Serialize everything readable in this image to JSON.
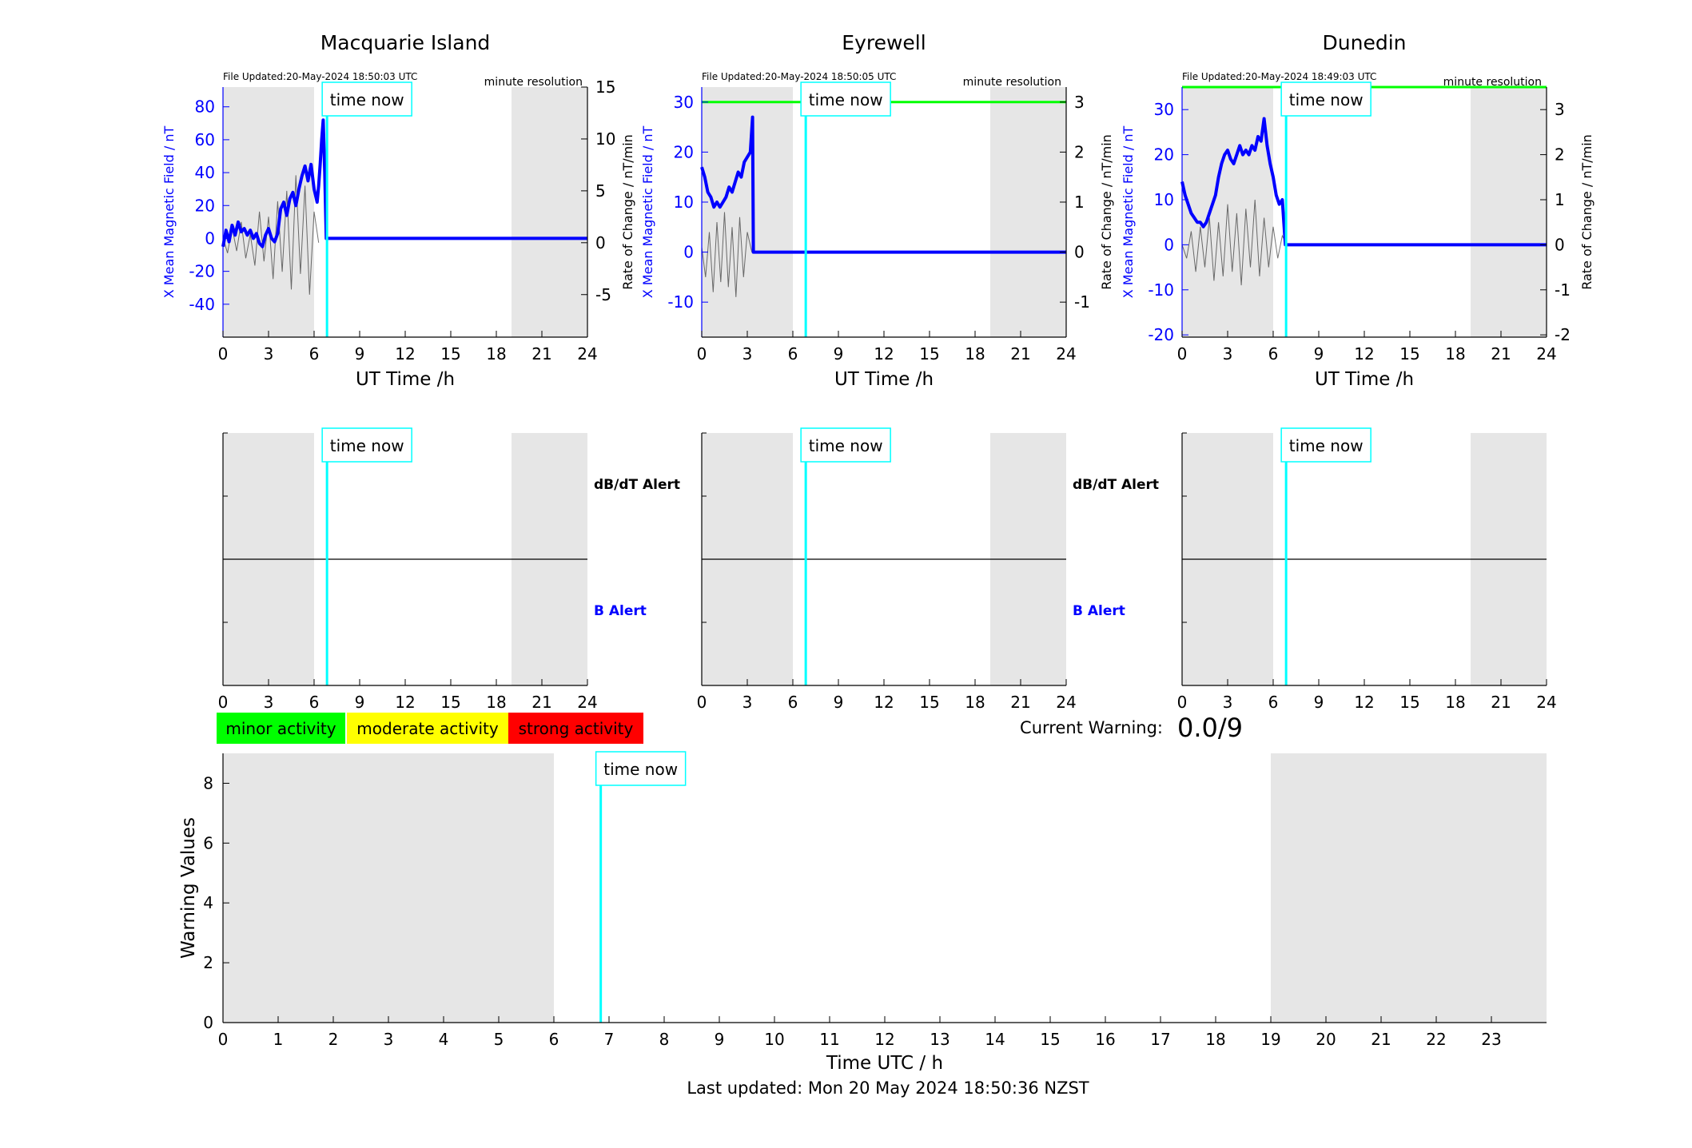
{
  "footer": {
    "last_updated": "Last updated: Mon 20 May 2024 18:50:36 NZST"
  },
  "colors": {
    "x_line": "#0000ff",
    "rate_line": "#000000",
    "threshold_line": "#00ff00",
    "time_now": "#00ffff",
    "night_shade": "#e6e6e6",
    "minor": "#00ff00",
    "moderate": "#ffff00",
    "strong": "#ff0000",
    "b_alert_text": "#0000ff"
  },
  "legend": {
    "minor": "minor activity",
    "moderate": "moderate activity",
    "strong": "strong activity"
  },
  "current_warning": {
    "label": "Current Warning:",
    "value": "0.0/9"
  },
  "chart_data": [
    {
      "type": "line",
      "title": "Macquarie Island",
      "file_updated": "File Updated:20-May-2024 18:50:03 UTC",
      "resolution": "minute resolution",
      "time_now_label": "time now",
      "xlabel": "UT Time /h",
      "ylabel": "X Mean Magnetic Field / nT",
      "ylabel_right": "Rate of Change / nT/min",
      "xlim": [
        0,
        24
      ],
      "xticks": [
        0,
        3,
        6,
        9,
        12,
        15,
        18,
        21,
        24
      ],
      "ylim": [
        -60,
        92
      ],
      "yticks": [
        -40,
        -20,
        0,
        20,
        40,
        60,
        80
      ],
      "ylim_right": [
        -9.1,
        15
      ],
      "yticks_right": [
        -5,
        0,
        5,
        10,
        15
      ],
      "night_shading": [
        [
          0,
          6
        ],
        [
          19,
          24
        ]
      ],
      "time_now": 6.85,
      "series": [
        {
          "name": "X Mean Magnetic Field",
          "x": [
            0,
            0.2,
            0.4,
            0.6,
            0.8,
            1.0,
            1.2,
            1.4,
            1.6,
            1.8,
            2.0,
            2.2,
            2.4,
            2.6,
            2.8,
            3.0,
            3.2,
            3.4,
            3.6,
            3.8,
            4.0,
            4.2,
            4.4,
            4.6,
            4.8,
            5.0,
            5.2,
            5.4,
            5.6,
            5.8,
            6.0,
            6.2,
            6.3,
            6.4,
            6.5,
            6.6,
            6.7,
            6.8,
            7.0,
            24
          ],
          "y": [
            -5,
            5,
            -2,
            8,
            2,
            10,
            4,
            6,
            2,
            5,
            0,
            3,
            -3,
            -5,
            2,
            6,
            0,
            -2,
            3,
            18,
            22,
            14,
            24,
            28,
            20,
            30,
            38,
            44,
            35,
            45,
            30,
            22,
            32,
            45,
            60,
            72,
            40,
            0,
            0,
            0
          ]
        },
        {
          "name": "Rate of Change",
          "x": [
            0,
            0.3,
            0.6,
            0.9,
            1.2,
            1.5,
            1.8,
            2.1,
            2.4,
            2.7,
            3.0,
            3.3,
            3.6,
            3.9,
            4.2,
            4.5,
            4.8,
            5.1,
            5.4,
            5.7,
            6.0,
            6.3
          ],
          "y": [
            0.5,
            -1.0,
            1.5,
            -0.8,
            2.0,
            -1.5,
            0.8,
            -2.2,
            3.0,
            -1.8,
            2.5,
            -3.5,
            4.0,
            -2.8,
            5.0,
            -4.5,
            6.5,
            -3.0,
            5.5,
            -5.0,
            3.0,
            0
          ]
        }
      ],
      "threshold": null
    },
    {
      "type": "line",
      "title": "Eyrewell",
      "file_updated": "File Updated:20-May-2024 18:50:05 UTC",
      "resolution": "minute resolution",
      "time_now_label": "time now",
      "xlabel": "UT Time /h",
      "ylabel": "X Mean Magnetic Field / nT",
      "ylabel_right": "Rate of Change / nT/min",
      "xlim": [
        0,
        24
      ],
      "xticks": [
        0,
        3,
        6,
        9,
        12,
        15,
        18,
        21,
        24
      ],
      "ylim": [
        -17,
        33
      ],
      "yticks": [
        -10,
        0,
        10,
        20,
        30
      ],
      "ylim_right": [
        -1.7,
        3.3
      ],
      "yticks_right": [
        -1,
        0,
        1,
        2,
        3
      ],
      "night_shading": [
        [
          0,
          6
        ],
        [
          19,
          24
        ]
      ],
      "time_now": 6.85,
      "series": [
        {
          "name": "X Mean Magnetic Field",
          "x": [
            0,
            0.2,
            0.4,
            0.6,
            0.8,
            1.0,
            1.2,
            1.4,
            1.6,
            1.8,
            2.0,
            2.2,
            2.4,
            2.6,
            2.8,
            3.0,
            3.2,
            3.35,
            3.4,
            3.5,
            24
          ],
          "y": [
            17,
            15,
            12,
            11,
            9,
            10,
            9,
            10,
            11,
            13,
            12,
            14,
            16,
            15,
            18,
            19,
            20,
            27,
            0,
            0,
            0
          ]
        },
        {
          "name": "Rate of Change",
          "x": [
            0,
            0.25,
            0.5,
            0.75,
            1.0,
            1.25,
            1.5,
            1.75,
            2.0,
            2.25,
            2.5,
            2.75,
            3.0,
            3.3
          ],
          "y": [
            0.1,
            -0.5,
            0.4,
            -0.8,
            0.6,
            -0.6,
            0.8,
            -0.7,
            0.5,
            -0.9,
            0.7,
            -0.5,
            0.4,
            0
          ]
        }
      ],
      "threshold": 30
    },
    {
      "type": "line",
      "title": "Dunedin",
      "file_updated": "File Updated:20-May-2024 18:49:03 UTC",
      "resolution": "minute resolution",
      "time_now_label": "time now",
      "xlabel": "UT Time /h",
      "ylabel": "X Mean Magnetic Field / nT",
      "ylabel_right": "Rate of Change / nT/min",
      "xlim": [
        0,
        24
      ],
      "xticks": [
        0,
        3,
        6,
        9,
        12,
        15,
        18,
        21,
        24
      ],
      "ylim": [
        -20.5,
        35
      ],
      "yticks": [
        -20,
        -10,
        0,
        10,
        20,
        30
      ],
      "ylim_right": [
        -2.05,
        3.5
      ],
      "yticks_right": [
        -2,
        -1,
        0,
        1,
        2,
        3
      ],
      "night_shading": [
        [
          0,
          6
        ],
        [
          19,
          24
        ]
      ],
      "time_now": 6.85,
      "series": [
        {
          "name": "X Mean Magnetic Field",
          "x": [
            0,
            0.2,
            0.4,
            0.6,
            0.8,
            1.0,
            1.2,
            1.4,
            1.6,
            1.8,
            2.0,
            2.2,
            2.4,
            2.6,
            2.8,
            3.0,
            3.2,
            3.4,
            3.6,
            3.8,
            4.0,
            4.2,
            4.4,
            4.6,
            4.8,
            5.0,
            5.2,
            5.4,
            5.6,
            5.8,
            6.0,
            6.2,
            6.4,
            6.6,
            6.8,
            7.0,
            24
          ],
          "y": [
            14,
            11,
            9,
            7,
            6,
            5,
            5,
            4,
            5,
            7,
            9,
            11,
            15,
            18,
            20,
            21,
            19,
            18,
            20,
            22,
            20,
            21,
            20,
            22,
            21,
            24,
            23,
            28,
            22,
            18,
            15,
            11,
            9,
            10,
            0,
            0,
            0
          ]
        },
        {
          "name": "Rate of Change",
          "x": [
            0,
            0.3,
            0.6,
            0.9,
            1.2,
            1.5,
            1.8,
            2.1,
            2.4,
            2.7,
            3.0,
            3.3,
            3.6,
            3.9,
            4.2,
            4.5,
            4.8,
            5.1,
            5.4,
            5.7,
            6.0,
            6.3,
            6.6,
            6.9
          ],
          "y": [
            0,
            -0.3,
            0.3,
            -0.6,
            0.4,
            -0.5,
            0.6,
            -0.8,
            0.5,
            -0.7,
            0.9,
            -0.6,
            0.7,
            -0.9,
            0.8,
            -0.5,
            1.0,
            -0.7,
            0.6,
            -0.5,
            0.4,
            -0.3,
            0.2,
            0
          ]
        }
      ],
      "threshold": 35
    },
    {
      "type": "line",
      "title": "",
      "time_now_label": "time now",
      "label_top": "dB/dT Alert",
      "label_bottom": "B Alert",
      "xlim": [
        0,
        24
      ],
      "xticks": [
        0,
        3,
        6,
        9,
        12,
        15,
        18,
        21,
        24
      ],
      "night_shading": [
        [
          0,
          6
        ],
        [
          19,
          24
        ]
      ],
      "time_now": 6.85,
      "series": []
    },
    {
      "type": "line",
      "title": "",
      "time_now_label": "time now",
      "label_top": "dB/dT Alert",
      "label_bottom": "B Alert",
      "xlim": [
        0,
        24
      ],
      "xticks": [
        0,
        3,
        6,
        9,
        12,
        15,
        18,
        21,
        24
      ],
      "night_shading": [
        [
          0,
          6
        ],
        [
          19,
          24
        ]
      ],
      "time_now": 6.85,
      "series": []
    },
    {
      "type": "line",
      "title": "",
      "time_now_label": "time now",
      "xlim": [
        0,
        24
      ],
      "xticks": [
        0,
        3,
        6,
        9,
        12,
        15,
        18,
        21,
        24
      ],
      "night_shading": [
        [
          0,
          6
        ],
        [
          19,
          24
        ]
      ],
      "time_now": 6.85,
      "series": []
    },
    {
      "type": "bar",
      "title": "",
      "time_now_label": "time now",
      "xlabel": "Time UTC / h",
      "ylabel": "Warning Values",
      "xlim": [
        0,
        24
      ],
      "xticks": [
        0,
        1,
        2,
        3,
        4,
        5,
        6,
        7,
        8,
        9,
        10,
        11,
        12,
        13,
        14,
        15,
        16,
        17,
        18,
        19,
        20,
        21,
        22,
        23
      ],
      "ylim": [
        0,
        9
      ],
      "yticks": [
        0,
        2,
        4,
        6,
        8
      ],
      "night_shading": [
        [
          0,
          6
        ],
        [
          19,
          24
        ]
      ],
      "time_now": 6.85,
      "series": []
    }
  ]
}
